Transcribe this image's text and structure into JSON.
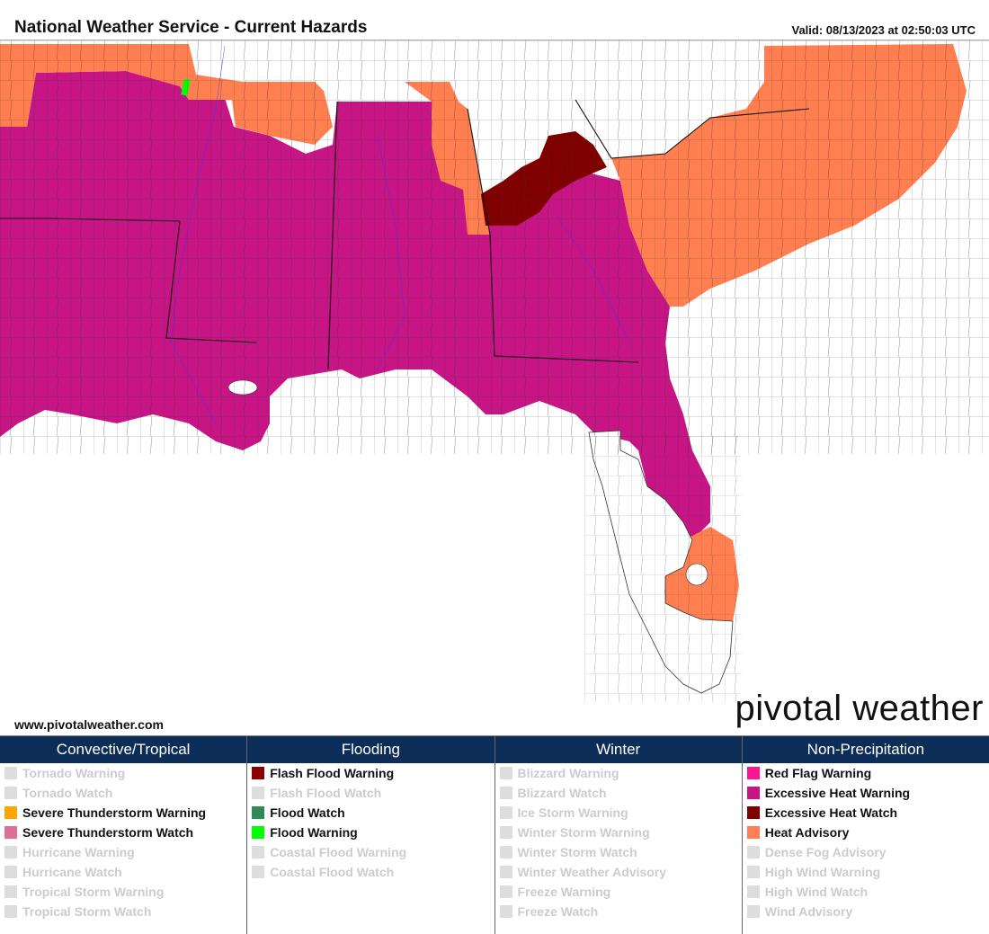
{
  "title": "National Weather Service - Current Hazards",
  "valid": "Valid: 08/13/2023 at 02:50:03 UTC",
  "website": "www.pivotalweather.com",
  "brand": "pivotal weather",
  "colors": {
    "excessive_heat_warning": "#c71585",
    "excessive_heat_watch": "#800000",
    "heat_advisory": "#ff7f50",
    "flood_warning": "#00ff00",
    "ocean": "#ffffff",
    "county_lines": "#333333",
    "rivers": "#3333ff",
    "header_bar": "#0c2d57"
  },
  "legend": [
    {
      "heading": "Convective/Tropical",
      "items": [
        {
          "label": "Tornado Warning",
          "color": "#dddddd",
          "active": false
        },
        {
          "label": "Tornado Watch",
          "color": "#dddddd",
          "active": false
        },
        {
          "label": "Severe Thunderstorm Warning",
          "color": "#ffa500",
          "active": true
        },
        {
          "label": "Severe Thunderstorm Watch",
          "color": "#db7093",
          "active": true
        },
        {
          "label": "Hurricane Warning",
          "color": "#dddddd",
          "active": false
        },
        {
          "label": "Hurricane Watch",
          "color": "#dddddd",
          "active": false
        },
        {
          "label": "Tropical Storm Warning",
          "color": "#dddddd",
          "active": false
        },
        {
          "label": "Tropical Storm Watch",
          "color": "#dddddd",
          "active": false
        }
      ]
    },
    {
      "heading": "Flooding",
      "items": [
        {
          "label": "Flash Flood Warning",
          "color": "#8b0000",
          "active": true
        },
        {
          "label": "Flash Flood Watch",
          "color": "#dddddd",
          "active": false
        },
        {
          "label": "Flood Watch",
          "color": "#2e8b57",
          "active": true
        },
        {
          "label": "Flood Warning",
          "color": "#00ff00",
          "active": true
        },
        {
          "label": "Coastal Flood Warning",
          "color": "#dddddd",
          "active": false
        },
        {
          "label": "Coastal Flood Watch",
          "color": "#dddddd",
          "active": false
        }
      ]
    },
    {
      "heading": "Winter",
      "items": [
        {
          "label": "Blizzard Warning",
          "color": "#dddddd",
          "active": false
        },
        {
          "label": "Blizzard Watch",
          "color": "#dddddd",
          "active": false
        },
        {
          "label": "Ice Storm Warning",
          "color": "#dddddd",
          "active": false
        },
        {
          "label": "Winter Storm Warning",
          "color": "#dddddd",
          "active": false
        },
        {
          "label": "Winter Storm Watch",
          "color": "#dddddd",
          "active": false
        },
        {
          "label": "Winter Weather Advisory",
          "color": "#dddddd",
          "active": false
        },
        {
          "label": "Freeze Warning",
          "color": "#dddddd",
          "active": false
        },
        {
          "label": "Freeze Watch",
          "color": "#dddddd",
          "active": false
        }
      ]
    },
    {
      "heading": "Non-Precipitation",
      "items": [
        {
          "label": "Red Flag Warning",
          "color": "#ff1493",
          "active": true
        },
        {
          "label": "Excessive Heat Warning",
          "color": "#c71585",
          "active": true
        },
        {
          "label": "Excessive Heat Watch",
          "color": "#800000",
          "active": true
        },
        {
          "label": "Heat Advisory",
          "color": "#ff7f50",
          "active": true
        },
        {
          "label": "Dense Fog Advisory",
          "color": "#dddddd",
          "active": false
        },
        {
          "label": "High Wind Warning",
          "color": "#dddddd",
          "active": false
        },
        {
          "label": "High Wind Watch",
          "color": "#dddddd",
          "active": false
        },
        {
          "label": "Wind Advisory",
          "color": "#dddddd",
          "active": false
        }
      ]
    }
  ]
}
